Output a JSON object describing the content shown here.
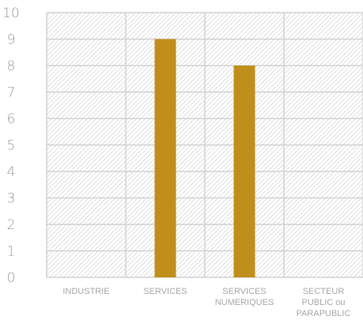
{
  "chart_data": {
    "type": "bar",
    "categories": [
      "INDUSTRIE",
      "SERVICES",
      "SERVICES NUMERIQUES",
      "SECTEUR PUBLIC ou PARAPUBLIC"
    ],
    "category_lines": [
      [
        "INDUSTRIE"
      ],
      [
        "SERVICES"
      ],
      [
        "SERVICES",
        "NUMERIQUES"
      ],
      [
        "SECTEUR",
        "PUBLIC ou",
        "PARAPUBLIC"
      ]
    ],
    "values": [
      0,
      9,
      8,
      0
    ],
    "ylim": [
      0,
      10
    ],
    "yticks": [
      "0",
      "1",
      "2",
      "3",
      "4",
      "5",
      "6",
      "7",
      "8",
      "9",
      "10"
    ],
    "title": "",
    "xlabel": "",
    "ylabel": "",
    "grid": true,
    "legend": "none",
    "colors": {
      "bar": "#c08f1b",
      "grid": "#d2d2d2",
      "hatch": "#cfcfcf",
      "tick_text": "#a0a0a0"
    }
  }
}
